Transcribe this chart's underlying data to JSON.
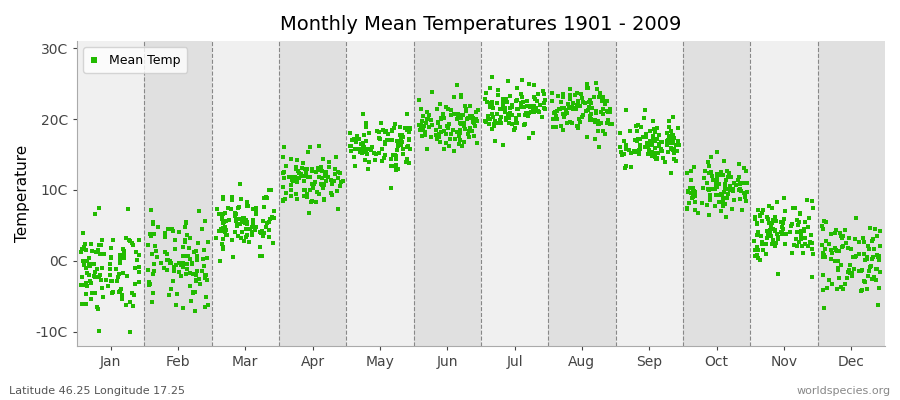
{
  "title": "Monthly Mean Temperatures 1901 - 2009",
  "ylabel": "Temperature",
  "xlabel_months": [
    "Jan",
    "Feb",
    "Mar",
    "Apr",
    "May",
    "Jun",
    "Jul",
    "Aug",
    "Sep",
    "Oct",
    "Nov",
    "Dec"
  ],
  "ylim": [
    -12,
    31
  ],
  "yticks": [
    -10,
    0,
    10,
    20,
    30
  ],
  "ytick_labels": [
    "-10C",
    "0C",
    "10C",
    "20C",
    "30C"
  ],
  "figure_bg_color": "#ffffff",
  "plot_bg_color": "#ffffff",
  "band_color_odd": "#f0f0f0",
  "band_color_even": "#e0e0e0",
  "dot_color": "#22bb00",
  "dot_size": 5,
  "legend_label": "Mean Temp",
  "bottom_left": "Latitude 46.25 Longitude 17.25",
  "bottom_right": "worldspecies.org",
  "monthly_means": [
    -1.5,
    -0.5,
    5.5,
    11.5,
    16.5,
    19.5,
    21.5,
    21.0,
    16.5,
    10.5,
    4.0,
    0.5
  ],
  "monthly_stds": [
    3.2,
    3.2,
    2.2,
    1.8,
    1.8,
    1.8,
    1.8,
    1.8,
    1.8,
    1.8,
    2.2,
    2.8
  ],
  "n_years": 109,
  "seed": 42,
  "dashed_line_color": "#888888",
  "spine_color": "#aaaaaa",
  "title_fontsize": 14,
  "axis_fontsize": 10,
  "ylabel_fontsize": 11,
  "footnote_fontsize": 8
}
